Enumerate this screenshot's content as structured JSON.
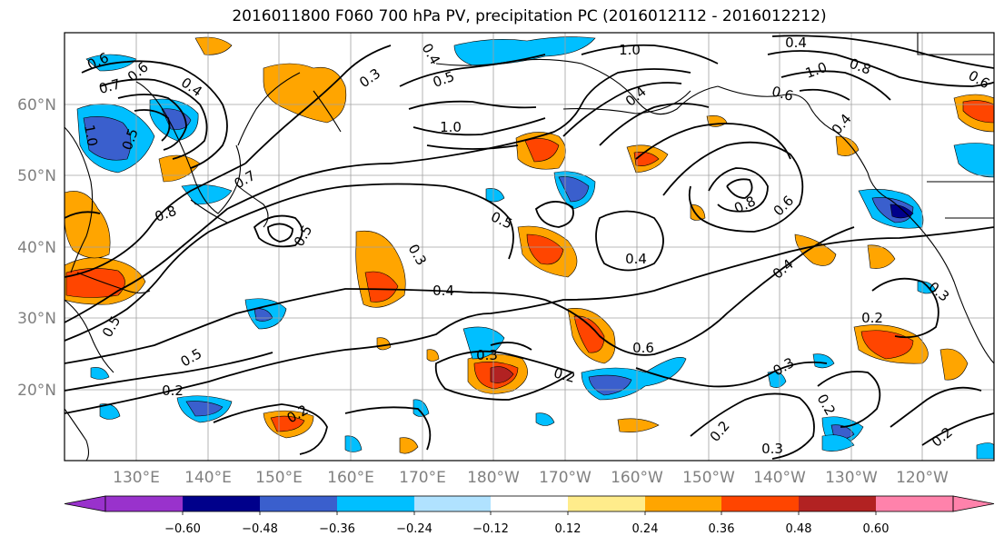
{
  "title": "2016011800 F060 700 hPa PV, precipitation PC (2016012112 - 2016012212)",
  "lat_labels": [
    "60°N",
    "50°N",
    "40°N",
    "30°N",
    "20°N"
  ],
  "lon_labels": [
    "130°E",
    "140°E",
    "150°E",
    "160°E",
    "170°E",
    "180°W",
    "170°W",
    "160°W",
    "150°W",
    "140°W",
    "130°W",
    "120°W"
  ],
  "colorbar": {
    "ticks": [
      "−0.60",
      "−0.48",
      "−0.36",
      "−0.24",
      "−0.12",
      "0.12",
      "0.24",
      "0.36",
      "0.48",
      "0.60"
    ],
    "colors": [
      "#9932cc",
      "#00008b",
      "#3a5fcd",
      "#00bfff",
      "#b0e2ff",
      "#ffffff",
      "#ffec8b",
      "#ffa500",
      "#ff4500",
      "#b22222",
      "#ff82ab"
    ]
  },
  "contour_labels": [
    {
      "text": "0.6"
    },
    {
      "text": "0.7"
    },
    {
      "text": "0.6"
    },
    {
      "text": "0.4"
    },
    {
      "text": "1.0"
    },
    {
      "text": "0.5"
    },
    {
      "text": "0.8"
    },
    {
      "text": "0.7"
    },
    {
      "text": "0.3"
    },
    {
      "text": "0.4"
    },
    {
      "text": "0.5"
    },
    {
      "text": "1.0"
    },
    {
      "text": "1.0"
    },
    {
      "text": "0.4"
    },
    {
      "text": "0.4"
    },
    {
      "text": "1.0"
    },
    {
      "text": "0.8"
    },
    {
      "text": "0.6"
    },
    {
      "text": "0.4"
    },
    {
      "text": "0.6"
    },
    {
      "text": "0.8"
    },
    {
      "text": "0.6"
    },
    {
      "text": "0.5"
    },
    {
      "text": "0.5"
    },
    {
      "text": "0.3"
    },
    {
      "text": "0.4"
    },
    {
      "text": "0.4"
    },
    {
      "text": "0.4"
    },
    {
      "text": "0.2"
    },
    {
      "text": "0.3"
    },
    {
      "text": "0.6"
    },
    {
      "text": "0.2"
    },
    {
      "text": "0.3"
    },
    {
      "text": "0.2"
    },
    {
      "text": "0.2"
    },
    {
      "text": "0.3"
    },
    {
      "text": "0.2"
    },
    {
      "text": "0.5"
    },
    {
      "text": "0.5"
    },
    {
      "text": "0.2"
    },
    {
      "text": "0.2"
    },
    {
      "text": "0.3"
    }
  ]
}
